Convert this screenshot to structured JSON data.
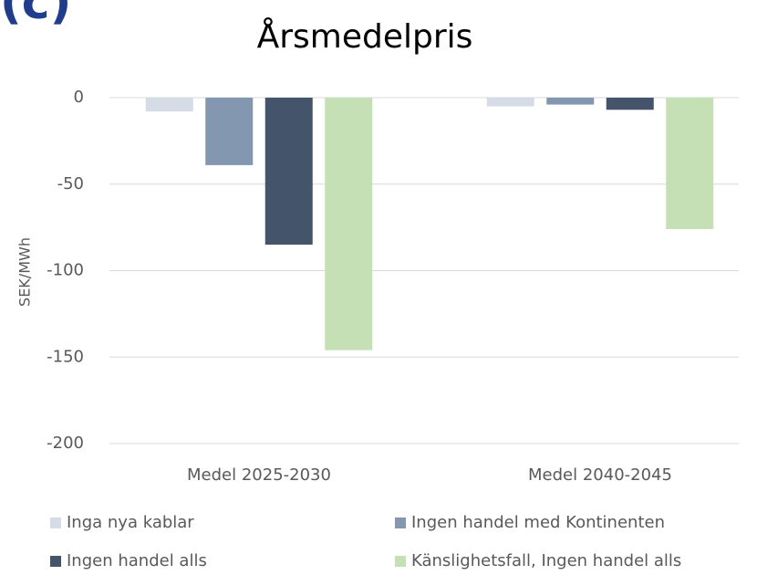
{
  "panel_label": "(c)",
  "chart_data": {
    "type": "bar",
    "title": "Årsmedelpris",
    "y_label": "SEK/MWh",
    "categories": [
      "Medel 2025-2030",
      "Medel 2040-2045"
    ],
    "series": [
      {
        "name": "Inga nya kablar",
        "color": "#d6dce5",
        "values": [
          -8,
          -5
        ]
      },
      {
        "name": "Ingen handel med Kontinenten",
        "color": "#8497b0",
        "values": [
          -39,
          -4
        ]
      },
      {
        "name": "Ingen handel alls",
        "color": "#44546a",
        "values": [
          -85,
          -7
        ]
      },
      {
        "name": "Känslighetsfall, Ingen handel alls",
        "color": "#c5e0b4",
        "values": [
          -146,
          -76
        ]
      }
    ],
    "ylim": [
      -200,
      0
    ],
    "yticks": [
      0,
      -50,
      -100,
      -150,
      -200
    ],
    "grid": true
  }
}
